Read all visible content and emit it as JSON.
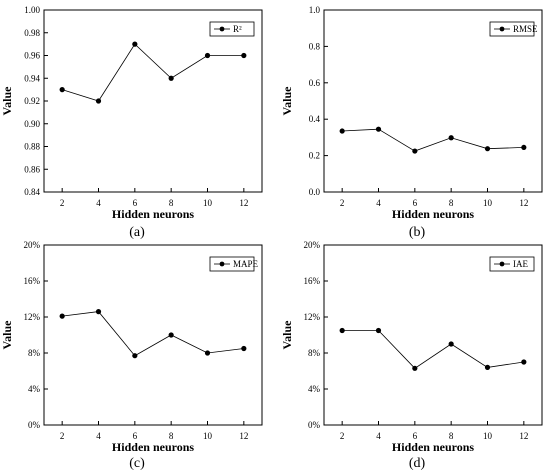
{
  "chart_data": [
    {
      "type": "line",
      "xlabel": "Hidden neurons",
      "ylabel": "Value",
      "x": [
        2,
        4,
        6,
        8,
        10,
        12
      ],
      "xlim": [
        1,
        13
      ],
      "ylim": [
        0.84,
        1.0
      ],
      "yticks": [
        "0.84",
        "0.86",
        "0.88",
        "0.90",
        "0.92",
        "0.94",
        "0.96",
        "0.98",
        "1.00"
      ],
      "ytick_values": [
        0.84,
        0.86,
        0.88,
        0.9,
        0.92,
        0.94,
        0.96,
        0.98,
        1.0
      ],
      "series": [
        {
          "name": "R²",
          "values": [
            0.93,
            0.92,
            0.97,
            0.94,
            0.96,
            0.96
          ]
        }
      ],
      "legend_position": "top-right",
      "caption": "(a)"
    },
    {
      "type": "line",
      "xlabel": "Hidden neurons",
      "ylabel": "Value",
      "x": [
        2,
        4,
        6,
        8,
        10,
        12
      ],
      "xlim": [
        1,
        13
      ],
      "ylim": [
        0.0,
        1.0
      ],
      "yticks": [
        "0.0",
        "0.2",
        "0.4",
        "0.6",
        "0.8",
        "1.0"
      ],
      "ytick_values": [
        0.0,
        0.2,
        0.4,
        0.6,
        0.8,
        1.0
      ],
      "series": [
        {
          "name": "RMSE",
          "values": [
            0.335,
            0.345,
            0.225,
            0.298,
            0.238,
            0.245
          ]
        }
      ],
      "legend_position": "top-right",
      "caption": "(b)"
    },
    {
      "type": "line",
      "xlabel": "Hidden neurons",
      "ylabel": "Value",
      "x": [
        2,
        4,
        6,
        8,
        10,
        12
      ],
      "xlim": [
        1,
        13
      ],
      "ylim": [
        0,
        20
      ],
      "yticks": [
        "0%",
        "4%",
        "8%",
        "12%",
        "16%",
        "20%"
      ],
      "ytick_values": [
        0,
        4,
        8,
        12,
        16,
        20
      ],
      "series": [
        {
          "name": "MAPE",
          "values": [
            12.1,
            12.6,
            7.7,
            10.0,
            8.0,
            8.5
          ]
        }
      ],
      "legend_position": "top-right",
      "caption": "(c)"
    },
    {
      "type": "line",
      "xlabel": "Hidden neurons",
      "ylabel": "Value",
      "x": [
        2,
        4,
        6,
        8,
        10,
        12
      ],
      "xlim": [
        1,
        13
      ],
      "ylim": [
        0,
        20
      ],
      "yticks": [
        "0%",
        "4%",
        "8%",
        "12%",
        "16%",
        "20%"
      ],
      "ytick_values": [
        0,
        4,
        8,
        12,
        16,
        20
      ],
      "series": [
        {
          "name": "IAE",
          "values": [
            10.5,
            10.5,
            6.3,
            9.0,
            6.4,
            7.0
          ]
        }
      ],
      "legend_position": "top-right",
      "caption": "(d)"
    }
  ],
  "colors": {
    "line": "#000000",
    "marker": "#000000",
    "axis": "#000000"
  }
}
